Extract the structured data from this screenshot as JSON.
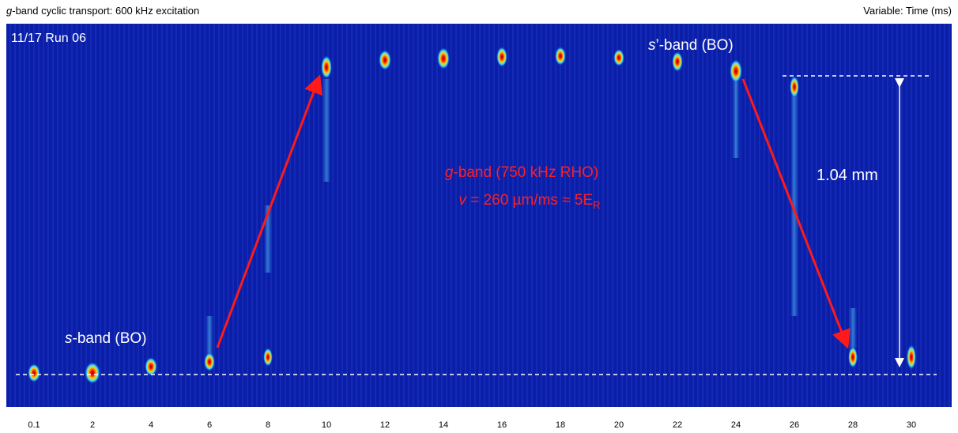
{
  "header": {
    "title": {
      "italic": "g",
      "text": "-band cyclic transport: 600 kHz excitation"
    },
    "variable": "Variable: Time (ms)"
  },
  "image": {
    "run": "11/17 Run 06",
    "s_prime_label": {
      "italic": "s",
      "text": "’-band (BO)"
    },
    "s_label": {
      "italic": "s",
      "text": "-band (BO)"
    },
    "g_label": {
      "italic": "g",
      "text": "-band (750 kHz RHO)"
    },
    "velocity": {
      "italic": "v",
      "text": " = 260 µm/ms ≈ 5E",
      "sub": "R"
    },
    "distance": "1.04 mm"
  },
  "time_ticks": [
    0.1,
    2,
    4,
    6,
    8,
    10,
    12,
    14,
    16,
    18,
    20,
    22,
    24,
    26,
    28,
    30
  ]
}
